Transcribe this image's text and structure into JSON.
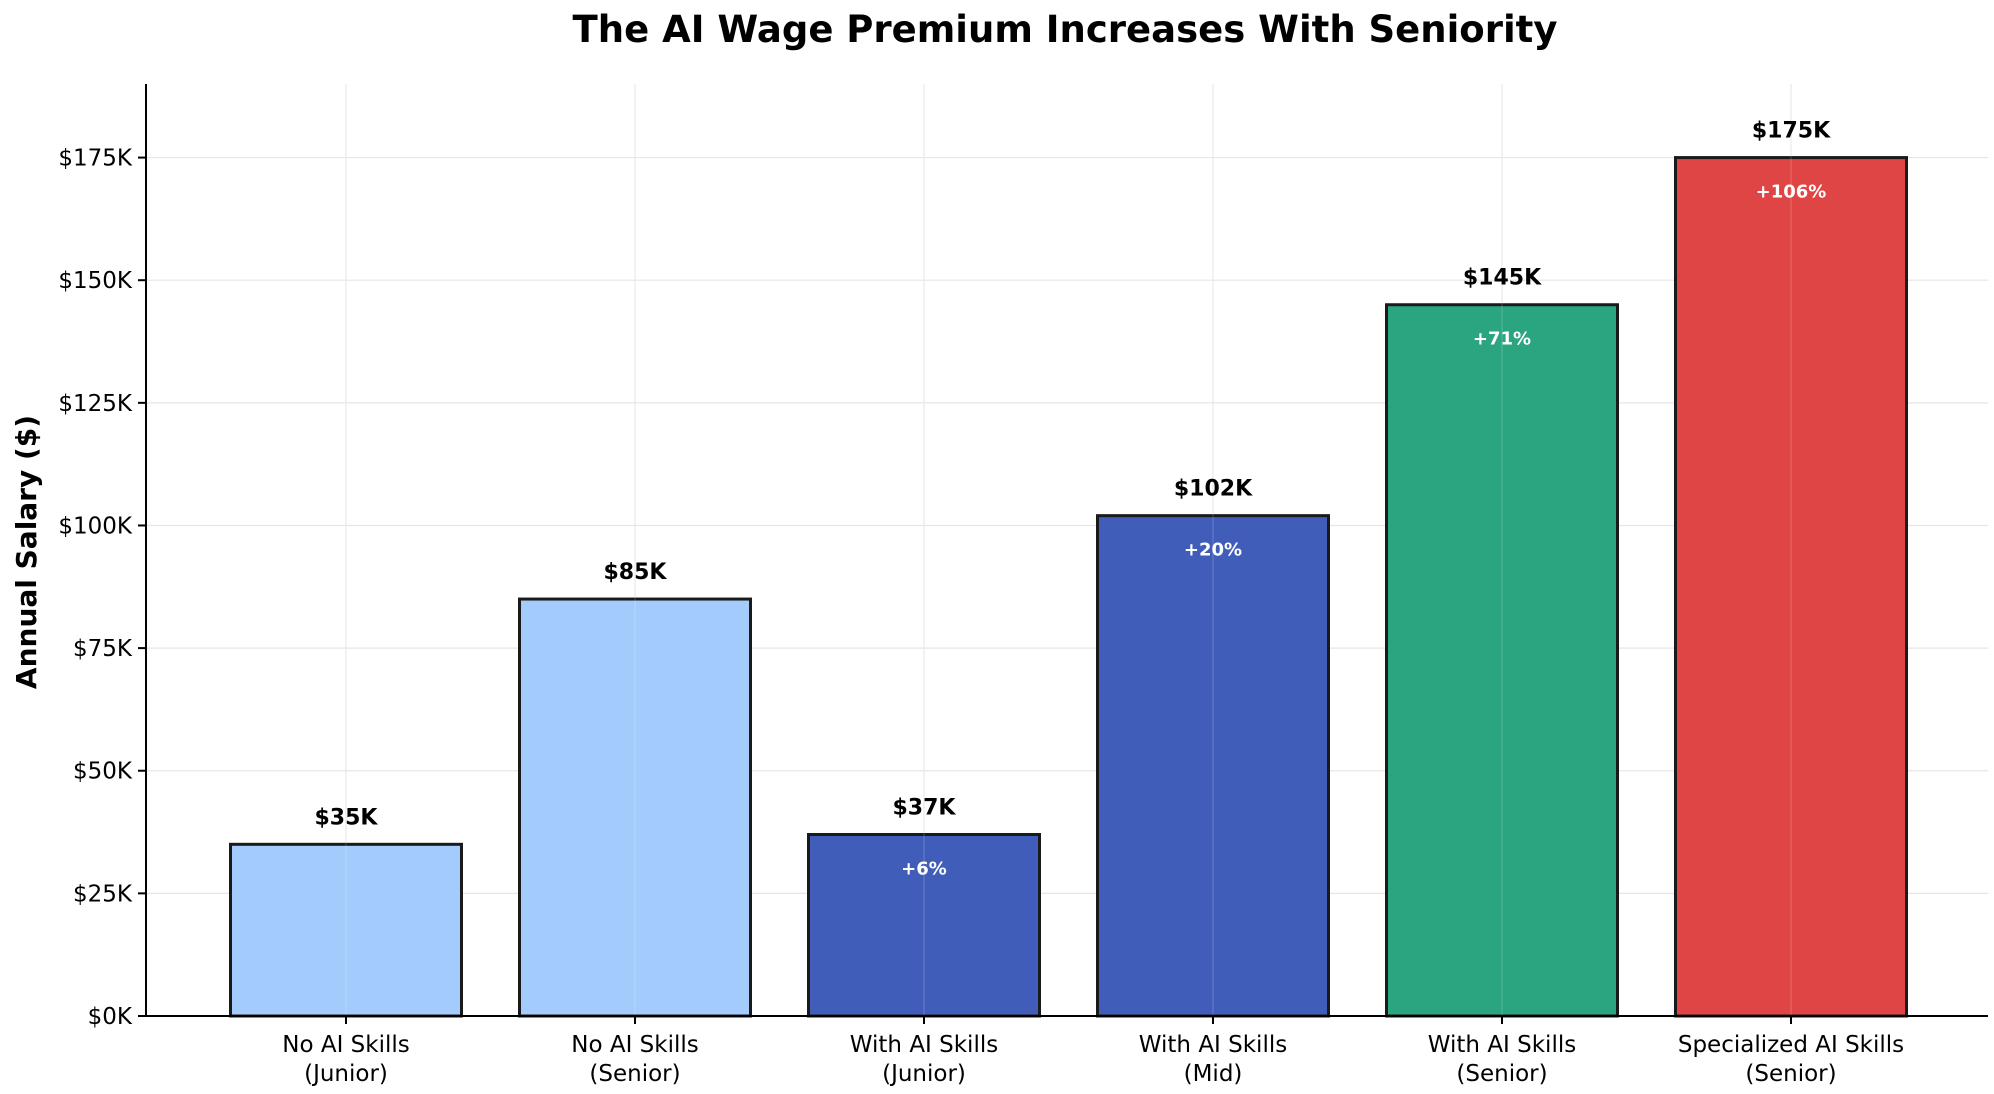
{
  "chart_data": {
    "type": "bar",
    "title": "The AI Wage Premium Increases With Seniority",
    "xlabel": "",
    "ylabel": "Annual Salary ($)",
    "ylim": [
      0,
      190000
    ],
    "grid": true,
    "categories": [
      [
        "No AI Skills",
        "(Junior)"
      ],
      [
        "No AI Skills",
        "(Senior)"
      ],
      [
        "With AI Skills",
        "(Junior)"
      ],
      [
        "With AI Skills",
        "(Mid)"
      ],
      [
        "With AI Skills",
        "(Senior)"
      ],
      [
        "Specialized AI Skills",
        "(Senior)"
      ]
    ],
    "values": [
      35000,
      85000,
      37000,
      102000,
      145000,
      175000
    ],
    "value_labels": [
      "$35K",
      "$85K",
      "$37K",
      "$102K",
      "$145K",
      "$175K"
    ],
    "premium_labels": [
      "",
      "",
      "+6%",
      "+20%",
      "+71%",
      "+106%"
    ],
    "colors": [
      "#a3ccfc",
      "#a3ccfc",
      "#405dba",
      "#405dba",
      "#2aa580",
      "#e04545"
    ],
    "yticks": [
      0,
      25000,
      50000,
      75000,
      100000,
      125000,
      150000,
      175000
    ],
    "ytick_labels": [
      "$0K",
      "$25K",
      "$50K",
      "$75K",
      "$100K",
      "$125K",
      "$150K",
      "$175K"
    ]
  }
}
